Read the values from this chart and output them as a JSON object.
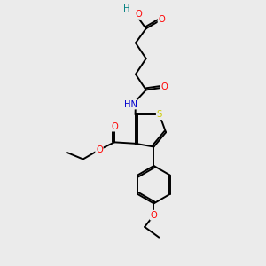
{
  "background_color": "#ebebeb",
  "bond_color": "#000000",
  "atom_colors": {
    "O": "#ff0000",
    "N": "#0000cd",
    "S": "#cccc00",
    "H": "#008080",
    "C": "#000000"
  },
  "figsize": [
    3.0,
    3.0
  ],
  "dpi": 100
}
